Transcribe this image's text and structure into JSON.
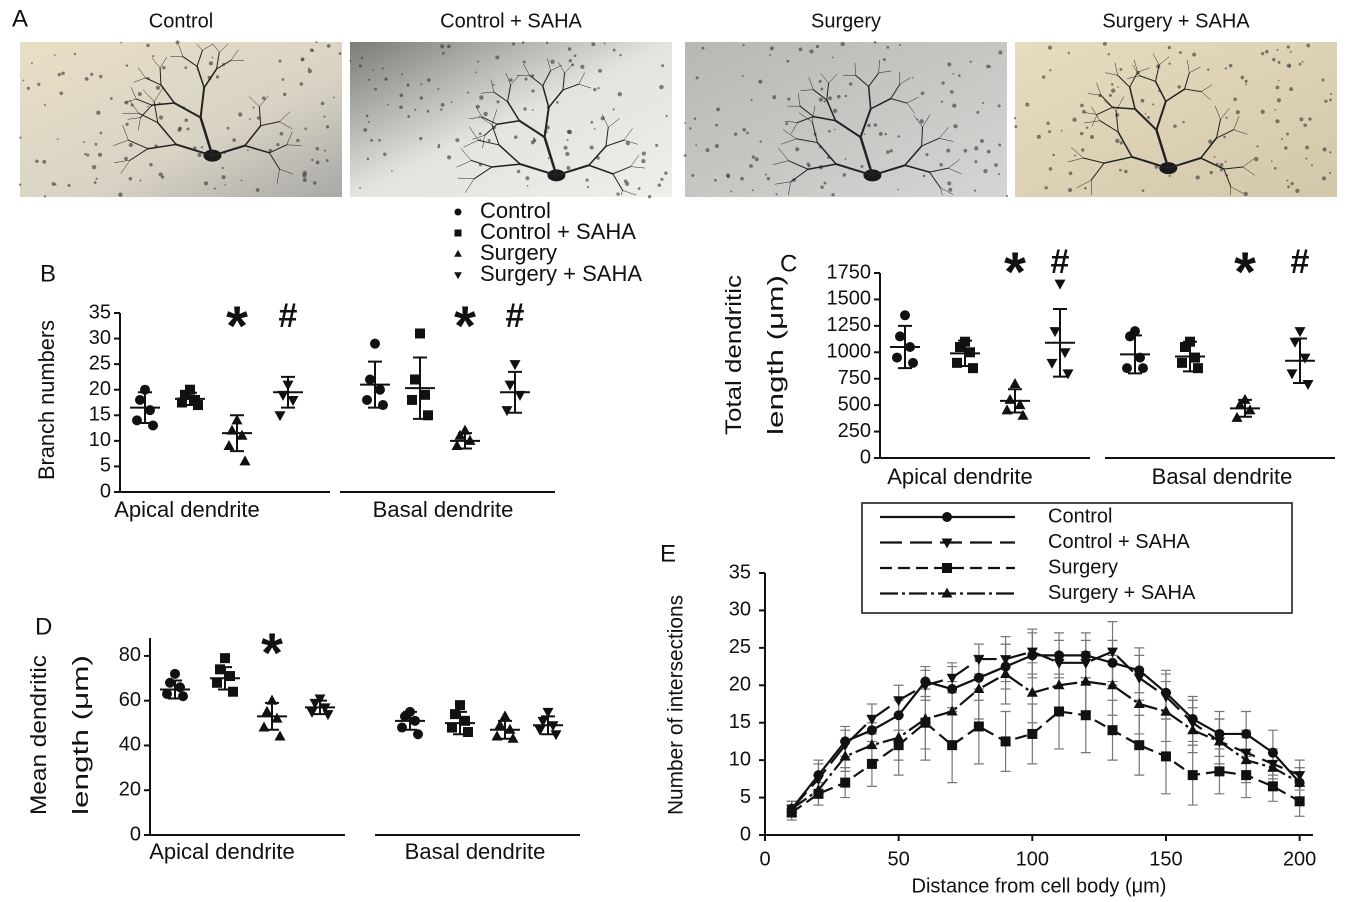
{
  "panel_a": {
    "label": "A",
    "titles": [
      "Control",
      "Control + SAHA",
      "Surgery",
      "Surgery + SAHA"
    ]
  },
  "group_legend": {
    "entries": [
      {
        "name": "Control",
        "marker": "circle"
      },
      {
        "name": "Control + SAHA",
        "marker": "square"
      },
      {
        "name": "Surgery",
        "marker": "triangle-up"
      },
      {
        "name": "Surgery + SAHA",
        "marker": "triangle-down"
      }
    ]
  },
  "chart_data": [
    {
      "type": "dotplot",
      "label": "B",
      "ylabel": [
        "Branch numbers"
      ],
      "categories": [
        "Apical dendrite",
        "Basal dendrite"
      ],
      "ylim": [
        0,
        35
      ],
      "yticks": [
        0,
        5,
        10,
        15,
        20,
        25,
        30,
        35
      ],
      "annotations": [
        [
          "*",
          "#"
        ],
        [
          "*",
          "#"
        ]
      ],
      "series": [
        {
          "points": [
            [
              20,
              18,
              16,
              14,
              13
            ],
            [
              29,
              22,
              20,
              18,
              17
            ]
          ],
          "mean": [
            16.5,
            21
          ],
          "sd": [
            3,
            4.5
          ]
        },
        {
          "points": [
            [
              20,
              19,
              18,
              17.5,
              17
            ],
            [
              31,
              22,
              19,
              18,
              15
            ]
          ],
          "mean": [
            18.2,
            20.3
          ],
          "sd": [
            1.2,
            6
          ]
        },
        {
          "points": [
            [
              14,
              12,
              11,
              9,
              6
            ],
            [
              12,
              11,
              10,
              9
            ]
          ],
          "mean": [
            11.5,
            10
          ],
          "sd": [
            3.5,
            1.5
          ]
        },
        {
          "points": [
            [
              21,
              19,
              18,
              15
            ],
            [
              25,
              21,
              19,
              16
            ]
          ],
          "mean": [
            19.5,
            19.5
          ],
          "sd": [
            3,
            4
          ]
        }
      ]
    },
    {
      "type": "dotplot",
      "label": "C",
      "ylabel": [
        "Total dendritic",
        "length (μm)"
      ],
      "categories": [
        "Apical dendrite",
        "Basal dendrite"
      ],
      "ylim": [
        0,
        1750
      ],
      "yticks": [
        0,
        250,
        500,
        750,
        1000,
        1250,
        1500,
        1750
      ],
      "annotations": [
        [
          "*",
          "#"
        ],
        [
          "*",
          "#"
        ]
      ],
      "series": [
        {
          "points": [
            [
              1350,
              1150,
              1050,
              950,
              900
            ],
            [
              1200,
              1150,
              950,
              850,
              850
            ]
          ],
          "mean": [
            1050,
            980
          ],
          "sd": [
            200,
            180
          ]
        },
        {
          "points": [
            [
              1100,
              1050,
              1000,
              900,
              850
            ],
            [
              1100,
              1050,
              950,
              900,
              850
            ]
          ],
          "mean": [
            990,
            960
          ],
          "sd": [
            120,
            140
          ]
        },
        {
          "points": [
            [
              700,
              550,
              500,
              450,
              400
            ],
            [
              550,
              500,
              450,
              380
            ]
          ],
          "mean": [
            540,
            470
          ],
          "sd": [
            110,
            80
          ]
        },
        {
          "points": [
            [
              1650,
              1200,
              1000,
              900,
              800
            ],
            [
              1200,
              1100,
              950,
              800,
              700
            ]
          ],
          "mean": [
            1090,
            920
          ],
          "sd": [
            320,
            210
          ]
        }
      ]
    },
    {
      "type": "dotplot",
      "label": "D",
      "ylabel": [
        "Mean dendritic",
        "length (μm)"
      ],
      "categories": [
        "Apical dendrite",
        "Basal dendrite"
      ],
      "ylim": [
        0,
        88
      ],
      "yticks": [
        0,
        20,
        40,
        60,
        80
      ],
      "annotations": [
        [
          "*"
        ],
        []
      ],
      "series": [
        {
          "points": [
            [
              72,
              68,
              66,
              63,
              62
            ],
            [
              55,
              53,
              51,
              48,
              45
            ]
          ],
          "mean": [
            65,
            51
          ],
          "sd": [
            4,
            4
          ]
        },
        {
          "points": [
            [
              79,
              74,
              71,
              68,
              64
            ],
            [
              58,
              54,
              51,
              48,
              46
            ]
          ],
          "mean": [
            70,
            50
          ],
          "sd": [
            5,
            5
          ]
        },
        {
          "points": [
            [
              60,
              55,
              52,
              48,
              44
            ],
            [
              53,
              49,
              47,
              44,
              43
            ]
          ],
          "mean": [
            53,
            47
          ],
          "sd": [
            6,
            4
          ]
        },
        {
          "points": [
            [
              61,
              59,
              57,
              55,
              54
            ],
            [
              55,
              51,
              49,
              47,
              45
            ]
          ],
          "mean": [
            57,
            49
          ],
          "sd": [
            3,
            4
          ]
        }
      ]
    },
    {
      "type": "line",
      "label": "E",
      "xlabel": "Distance from cell body (μm)",
      "ylabel": "Number of intersections",
      "x": [
        10,
        20,
        30,
        40,
        50,
        60,
        70,
        80,
        90,
        100,
        110,
        120,
        130,
        140,
        150,
        160,
        170,
        180,
        190,
        200
      ],
      "xlim": [
        0,
        205
      ],
      "xticks": [
        0,
        50,
        100,
        150,
        200
      ],
      "ylim": [
        0,
        35
      ],
      "yticks": [
        0,
        5,
        10,
        15,
        20,
        25,
        30,
        35
      ],
      "series": [
        {
          "name": "Control",
          "marker": "circle",
          "dash": "none",
          "values": [
            3.5,
            8,
            12.5,
            14,
            16,
            20.5,
            19.5,
            21,
            22.5,
            24,
            24,
            24,
            23,
            22,
            19,
            15.5,
            13.5,
            13.5,
            11,
            7
          ],
          "errors": [
            1,
            2,
            2,
            2,
            2,
            2,
            3,
            3,
            3,
            3,
            3,
            3,
            3,
            3,
            3,
            3,
            3,
            3,
            3,
            2
          ]
        },
        {
          "name": "Control + SAHA",
          "marker": "triangle-down",
          "dash": "22 8",
          "values": [
            3.5,
            7.5,
            12,
            15.5,
            18,
            20,
            21,
            23.5,
            23.5,
            24.5,
            23,
            23,
            24.5,
            21,
            18.5,
            15,
            12.5,
            11,
            9.5,
            8
          ],
          "errors": [
            1,
            2,
            2,
            2,
            2,
            2,
            2,
            2,
            3,
            3,
            3,
            3,
            4,
            3,
            3,
            3,
            3,
            3,
            2,
            2
          ]
        },
        {
          "name": "Surgery",
          "marker": "square",
          "dash": "12 6",
          "values": [
            3,
            5.5,
            7,
            9.5,
            12,
            15,
            12,
            14.5,
            12.5,
            13.5,
            16.5,
            16,
            14,
            12,
            10.5,
            8,
            8.5,
            8,
            6.5,
            4.5
          ],
          "errors": [
            1,
            1.5,
            2,
            3,
            4,
            5,
            5,
            5,
            4,
            4,
            5,
            5,
            4,
            4,
            5,
            4,
            3,
            3,
            2,
            2
          ]
        },
        {
          "name": "Surgery + SAHA",
          "marker": "triangle-up",
          "dash": "18 4 3 4",
          "values": [
            3.5,
            6,
            10.5,
            12,
            13,
            15.5,
            16.5,
            19.5,
            21.5,
            19,
            20,
            20.5,
            20,
            17.5,
            16.5,
            14,
            12.5,
            10,
            9,
            7
          ],
          "errors": [
            1,
            2,
            2,
            3,
            3,
            4,
            4,
            4,
            4,
            4,
            4,
            4,
            4,
            4,
            4,
            3,
            3,
            3,
            2,
            2
          ]
        }
      ]
    }
  ]
}
